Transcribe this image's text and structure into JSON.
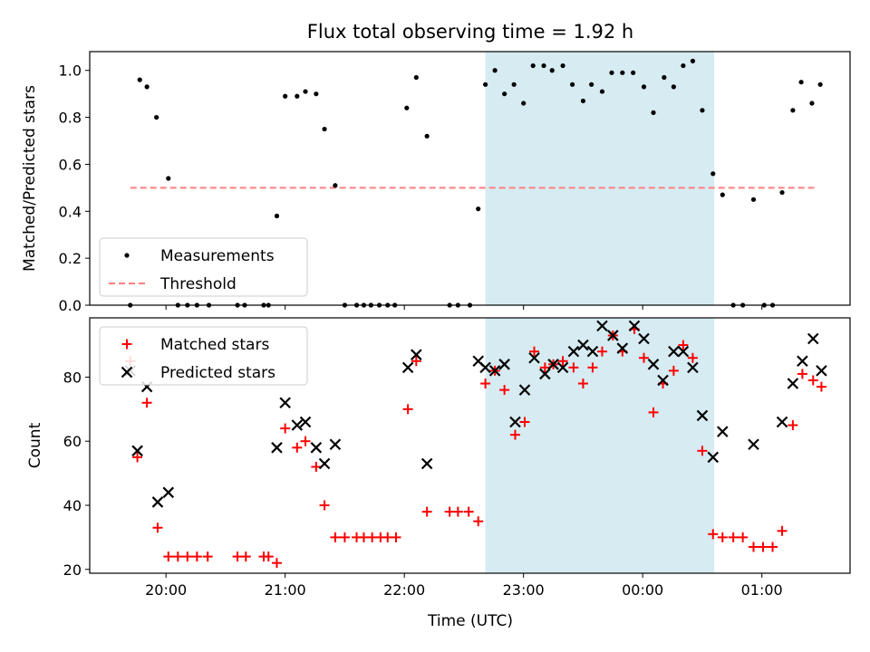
{
  "chart_data": {
    "title": "Flux total observing time = 1.92 h",
    "xlabel": "Time (UTC)",
    "x_ticks": [
      "20:00",
      "21:00",
      "22:00",
      "23:00",
      "00:00",
      "01:00"
    ],
    "x_tick_hours": [
      20,
      21,
      22,
      23,
      24,
      25
    ],
    "xlim_hours": [
      19.36,
      25.74
    ],
    "highlight_span_hours": [
      22.68,
      24.6
    ],
    "colors": {
      "measurements": "#000000",
      "threshold": "#ff7f7f",
      "matched": "#ff0000",
      "predicted": "#000000",
      "span": "#add8e6"
    },
    "panels": [
      {
        "type": "scatter",
        "ylabel": "Matched/Predicted stars",
        "ylim": [
          0,
          1.08
        ],
        "y_ticks": [
          "0.0",
          "0.2",
          "0.4",
          "0.6",
          "0.8",
          "1.0"
        ],
        "y_tick_values": [
          0,
          0.2,
          0.4,
          0.6,
          0.8,
          1.0
        ],
        "legend_position": "lower-left",
        "threshold": 0.5,
        "threshold_x_hours": [
          19.7,
          25.44
        ],
        "series": [
          {
            "name": "Measurements",
            "marker": "dot",
            "points": [
              [
                19.7,
                0.0
              ],
              [
                19.78,
                0.96
              ],
              [
                19.84,
                0.93
              ],
              [
                19.92,
                0.8
              ],
              [
                20.02,
                0.54
              ],
              [
                20.1,
                0.0
              ],
              [
                20.18,
                0.0
              ],
              [
                20.26,
                0.0
              ],
              [
                20.36,
                0.0
              ],
              [
                20.6,
                0.0
              ],
              [
                20.66,
                0.0
              ],
              [
                20.82,
                0.0
              ],
              [
                20.86,
                0.0
              ],
              [
                20.93,
                0.38
              ],
              [
                21.0,
                0.89
              ],
              [
                21.1,
                0.89
              ],
              [
                21.17,
                0.91
              ],
              [
                21.26,
                0.9
              ],
              [
                21.33,
                0.75
              ],
              [
                21.42,
                0.51
              ],
              [
                21.5,
                0.0
              ],
              [
                21.6,
                0.0
              ],
              [
                21.66,
                0.0
              ],
              [
                21.72,
                0.0
              ],
              [
                21.79,
                0.0
              ],
              [
                21.86,
                0.0
              ],
              [
                21.92,
                0.0
              ],
              [
                22.02,
                0.84
              ],
              [
                22.1,
                0.97
              ],
              [
                22.19,
                0.72
              ],
              [
                22.38,
                0.0
              ],
              [
                22.45,
                0.0
              ],
              [
                22.55,
                0.0
              ],
              [
                22.62,
                0.41
              ],
              [
                22.68,
                0.94
              ],
              [
                22.76,
                1.0
              ],
              [
                22.84,
                0.9
              ],
              [
                22.92,
                0.94
              ],
              [
                23.0,
                0.86
              ],
              [
                23.08,
                1.02
              ],
              [
                23.17,
                1.02
              ],
              [
                23.24,
                1.0
              ],
              [
                23.33,
                1.02
              ],
              [
                23.41,
                0.94
              ],
              [
                23.5,
                0.87
              ],
              [
                23.57,
                0.94
              ],
              [
                23.66,
                0.91
              ],
              [
                23.74,
                0.99
              ],
              [
                23.83,
                0.99
              ],
              [
                23.92,
                0.99
              ],
              [
                24.01,
                0.93
              ],
              [
                24.09,
                0.82
              ],
              [
                24.18,
                0.97
              ],
              [
                24.26,
                0.93
              ],
              [
                24.34,
                1.02
              ],
              [
                24.42,
                1.04
              ],
              [
                24.5,
                0.83
              ],
              [
                24.59,
                0.56
              ],
              [
                24.67,
                0.47
              ],
              [
                24.76,
                0.0
              ],
              [
                24.84,
                0.0
              ],
              [
                24.93,
                0.45
              ],
              [
                25.02,
                0.0
              ],
              [
                25.09,
                0.0
              ],
              [
                25.17,
                0.48
              ],
              [
                25.26,
                0.83
              ],
              [
                25.33,
                0.95
              ],
              [
                25.42,
                0.86
              ],
              [
                25.49,
                0.94
              ]
            ]
          },
          {
            "name": "Threshold",
            "marker": "dashed-line"
          }
        ]
      },
      {
        "type": "scatter",
        "ylabel": "Count",
        "ylim": [
          18.8,
          98.5
        ],
        "y_ticks": [
          "20",
          "40",
          "60",
          "80"
        ],
        "y_tick_values": [
          20,
          40,
          60,
          80
        ],
        "legend_position": "upper-left",
        "series": [
          {
            "name": "Matched stars",
            "marker": "plus",
            "points": [
              [
                19.7,
                85
              ],
              [
                19.76,
                55
              ],
              [
                19.84,
                72
              ],
              [
                19.93,
                33
              ],
              [
                20.02,
                24
              ],
              [
                20.1,
                24
              ],
              [
                20.18,
                24
              ],
              [
                20.26,
                24
              ],
              [
                20.35,
                24
              ],
              [
                20.6,
                24
              ],
              [
                20.67,
                24
              ],
              [
                20.82,
                24
              ],
              [
                20.86,
                24
              ],
              [
                20.93,
                22
              ],
              [
                21.0,
                64
              ],
              [
                21.1,
                58
              ],
              [
                21.17,
                60
              ],
              [
                21.26,
                52
              ],
              [
                21.33,
                40
              ],
              [
                21.42,
                30
              ],
              [
                21.5,
                30
              ],
              [
                21.6,
                30
              ],
              [
                21.66,
                30
              ],
              [
                21.73,
                30
              ],
              [
                21.8,
                30
              ],
              [
                21.86,
                30
              ],
              [
                21.93,
                30
              ],
              [
                22.03,
                70
              ],
              [
                22.1,
                85
              ],
              [
                22.19,
                38
              ],
              [
                22.38,
                38
              ],
              [
                22.45,
                38
              ],
              [
                22.54,
                38
              ],
              [
                22.62,
                35
              ],
              [
                22.68,
                78
              ],
              [
                22.76,
                82
              ],
              [
                22.84,
                76
              ],
              [
                22.93,
                62
              ],
              [
                23.01,
                66
              ],
              [
                23.09,
                88
              ],
              [
                23.18,
                83
              ],
              [
                23.25,
                84
              ],
              [
                23.33,
                85
              ],
              [
                23.42,
                83
              ],
              [
                23.5,
                78
              ],
              [
                23.58,
                83
              ],
              [
                23.66,
                88
              ],
              [
                23.75,
                93
              ],
              [
                23.83,
                88
              ],
              [
                23.93,
                95
              ],
              [
                24.01,
                86
              ],
              [
                24.09,
                69
              ],
              [
                24.17,
                78
              ],
              [
                24.26,
                82
              ],
              [
                24.34,
                90
              ],
              [
                24.42,
                86
              ],
              [
                24.5,
                57
              ],
              [
                24.59,
                31
              ],
              [
                24.67,
                30
              ],
              [
                24.76,
                30
              ],
              [
                24.84,
                30
              ],
              [
                24.93,
                27
              ],
              [
                25.01,
                27
              ],
              [
                25.09,
                27
              ],
              [
                25.17,
                32
              ],
              [
                25.26,
                65
              ],
              [
                25.34,
                81
              ],
              [
                25.43,
                79
              ],
              [
                25.5,
                77
              ]
            ]
          },
          {
            "name": "Predicted stars",
            "marker": "x",
            "points": [
              [
                19.7,
                82
              ],
              [
                19.76,
                57
              ],
              [
                19.84,
                77
              ],
              [
                19.93,
                41
              ],
              [
                20.02,
                44
              ],
              [
                20.93,
                58
              ],
              [
                21.0,
                72
              ],
              [
                21.1,
                65
              ],
              [
                21.17,
                66
              ],
              [
                21.26,
                58
              ],
              [
                21.33,
                53
              ],
              [
                21.42,
                59
              ],
              [
                22.03,
                83
              ],
              [
                22.1,
                87
              ],
              [
                22.19,
                53
              ],
              [
                22.62,
                85
              ],
              [
                22.68,
                83
              ],
              [
                22.76,
                82
              ],
              [
                22.84,
                84
              ],
              [
                22.93,
                66
              ],
              [
                23.01,
                76
              ],
              [
                23.09,
                86
              ],
              [
                23.18,
                81
              ],
              [
                23.25,
                84
              ],
              [
                23.33,
                83
              ],
              [
                23.42,
                88
              ],
              [
                23.5,
                90
              ],
              [
                23.58,
                88
              ],
              [
                23.66,
                96
              ],
              [
                23.75,
                93
              ],
              [
                23.83,
                89
              ],
              [
                23.93,
                96
              ],
              [
                24.01,
                92
              ],
              [
                24.09,
                84
              ],
              [
                24.17,
                79
              ],
              [
                24.26,
                88
              ],
              [
                24.34,
                88
              ],
              [
                24.42,
                83
              ],
              [
                24.5,
                68
              ],
              [
                24.59,
                55
              ],
              [
                24.67,
                63
              ],
              [
                24.93,
                59
              ],
              [
                25.17,
                66
              ],
              [
                25.26,
                78
              ],
              [
                25.34,
                85
              ],
              [
                25.43,
                92
              ],
              [
                25.5,
                82
              ]
            ]
          }
        ]
      }
    ]
  }
}
